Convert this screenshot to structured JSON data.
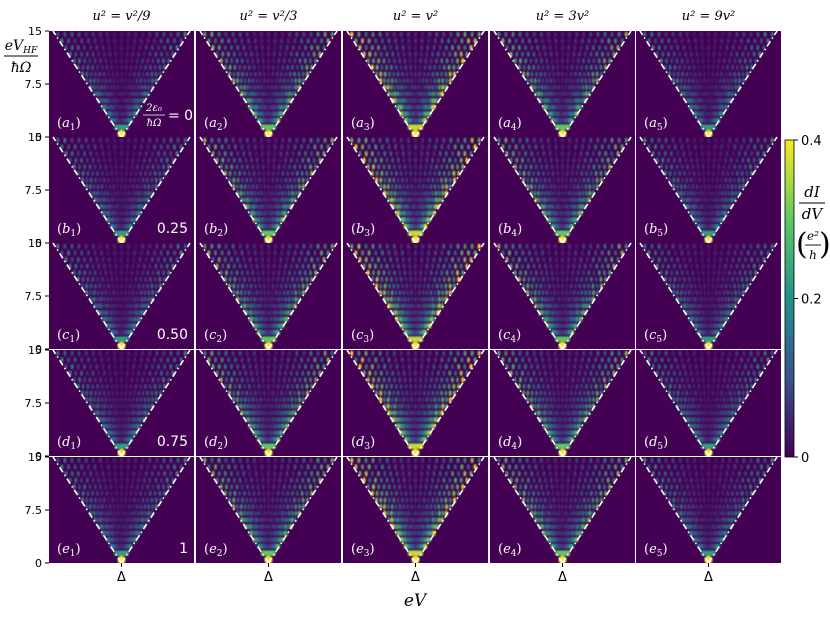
{
  "chart_data": {
    "type": "heatmap",
    "grid": {
      "rows": 5,
      "cols": 5
    },
    "column_titles": [
      "u² = v²/9",
      "u² = v²/3",
      "u² = v²",
      "u² = 3v²",
      "u² = 9v²"
    ],
    "u2_over_v2": [
      0.1111,
      0.3333,
      1,
      3,
      9
    ],
    "row_letters": [
      "a",
      "b",
      "c",
      "d",
      "e"
    ],
    "row_values": [
      0,
      0.25,
      0.5,
      0.75,
      1
    ],
    "row_value_labels": [
      "= 0",
      "0.25",
      "0.50",
      "0.75",
      "1"
    ],
    "row_value_symbol": {
      "num": "2ε₀",
      "den": "ħΩ"
    },
    "ylabel": {
      "num": "eV_HF",
      "den": "ħΩ"
    },
    "ylim": [
      0,
      15
    ],
    "yticks": [
      0,
      7.5,
      15
    ],
    "ytick_labels": [
      "0",
      "7.5",
      "15"
    ],
    "xlabel": "eV",
    "xtick_labels": [
      "Δ"
    ],
    "colorbar": {
      "label_num": "dI",
      "label_den": "dV",
      "unit_num": "e²",
      "unit_den": "h",
      "range": [
        0,
        0.4
      ],
      "ticks": [
        0,
        0.2,
        0.4
      ],
      "tick_labels": [
        "0",
        "0.2",
        "0.4"
      ],
      "colormap": "viridis"
    },
    "grid_lines": false,
    "boundary_style": "white dash-dot V lines"
  },
  "colors": {
    "background": "#440154",
    "boundary": "#ffffff",
    "viridis": [
      "#440154",
      "#3b528b",
      "#21908d",
      "#5dc963",
      "#fde725"
    ]
  }
}
